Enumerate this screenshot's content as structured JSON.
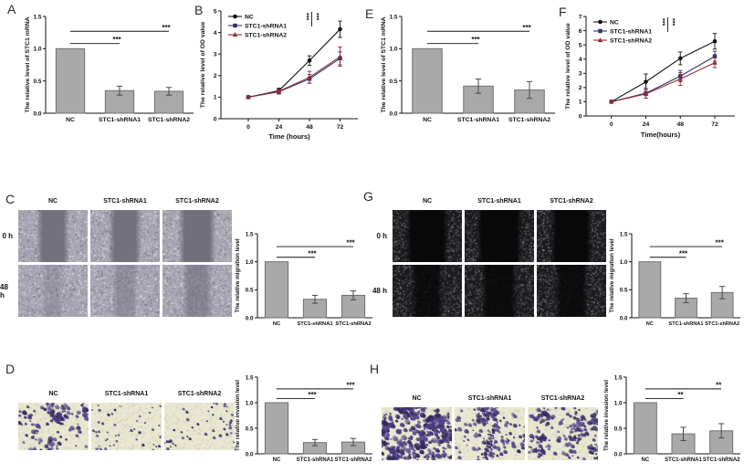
{
  "figure": {
    "panels": {
      "A": {
        "letter": "A"
      },
      "B": {
        "letter": "B"
      },
      "C": {
        "letter": "C"
      },
      "D": {
        "letter": "D"
      },
      "E": {
        "letter": "E"
      },
      "F": {
        "letter": "F"
      },
      "G": {
        "letter": "G"
      },
      "H": {
        "letter": "H"
      }
    }
  },
  "colors": {
    "axis": "#111111",
    "bar_fill": "#a9a9a9",
    "bar_stroke": "#6f6f6f",
    "error": "#4a4a4a",
    "nc": "#111111",
    "shrna1": "#33336e",
    "shrna2": "#8f2b33"
  },
  "chart_data": [
    {
      "id": "A",
      "type": "bar",
      "title": "",
      "ylabel": "The relative level of STC1 mRNA",
      "ylim": [
        0,
        1.5
      ],
      "yticks": [
        "0.0",
        "0.5",
        "1.0",
        "1.5"
      ],
      "categories": [
        "NC",
        "STC1-shRNA1",
        "STC1-shRNA2"
      ],
      "values": [
        1.0,
        0.35,
        0.34
      ],
      "errors": [
        0,
        0.07,
        0.06
      ],
      "sig": [
        {
          "a": 0,
          "b": 1,
          "y": 1.08,
          "label": "***"
        },
        {
          "a": 0,
          "b": 2,
          "y": 1.27,
          "label": "***"
        }
      ],
      "layout": {
        "ml": 26,
        "mt": 12,
        "mr": 8,
        "mb": 22,
        "ylx": 8,
        "yls": 6.8,
        "ts": 6.5,
        "cs": 6.8,
        "cly": 9,
        "bw": 0.58
      }
    },
    {
      "id": "B",
      "type": "line",
      "ylabel": "The relative level of OD value",
      "xlabel": "Time (hours)",
      "ylim": [
        0,
        5
      ],
      "yticks": [
        0,
        1,
        2,
        3,
        4,
        5
      ],
      "x": [
        0,
        24,
        48,
        72
      ],
      "series": [
        {
          "name": "NC",
          "color": "#111111",
          "marker": "circle",
          "values": [
            1.0,
            1.3,
            2.7,
            4.15
          ],
          "errors": [
            0.06,
            0.12,
            0.22,
            0.38
          ]
        },
        {
          "name": "STC1-shRNA1",
          "color": "#33336e",
          "marker": "square",
          "values": [
            1.0,
            1.25,
            1.85,
            2.8
          ],
          "errors": [
            0.06,
            0.1,
            0.2,
            0.3
          ]
        },
        {
          "name": "STC1-shRNA2",
          "color": "#8f2b33",
          "marker": "triangle",
          "values": [
            1.0,
            1.27,
            1.92,
            2.88
          ],
          "errors": [
            0.06,
            0.12,
            0.28,
            0.45
          ]
        }
      ],
      "sig": {
        "labels": [
          "***",
          "***"
        ]
      },
      "layout": {
        "ml": 26,
        "mt": 8,
        "mr": 10,
        "mb": 30,
        "ylx": 8,
        "yls": 6.8,
        "ts": 6.8,
        "padL": 0.2,
        "padR": 0.13,
        "xly": 16,
        "xls": 7.5,
        "fx": 0.61
      }
    },
    {
      "id": "E",
      "type": "bar",
      "ylabel": "The relative level of STC1 mRNA",
      "ylim": [
        0,
        1.5
      ],
      "yticks": [
        "0.0",
        "0.5",
        "1.0",
        "1.5"
      ],
      "categories": [
        "NC",
        "STC1-shRNA1",
        "STC1-shRNA2"
      ],
      "values": [
        1.0,
        0.42,
        0.36
      ],
      "errors": [
        0,
        0.11,
        0.13
      ],
      "sig": [
        {
          "a": 0,
          "b": 1,
          "y": 1.08,
          "label": "***"
        },
        {
          "a": 0,
          "b": 2,
          "y": 1.27,
          "label": "***"
        }
      ],
      "layout": {
        "ml": 26,
        "mt": 12,
        "mr": 6,
        "mb": 22,
        "ylx": 8,
        "yls": 6.8,
        "ts": 6.5,
        "cs": 6.8,
        "cly": 9,
        "bw": 0.58
      }
    },
    {
      "id": "F",
      "type": "line",
      "ylabel": "The relative level of OD value",
      "xlabel": "Time(hours)",
      "ylim": [
        0,
        7
      ],
      "yticks": [
        0,
        1,
        2,
        3,
        4,
        5,
        6,
        7
      ],
      "x": [
        0,
        24,
        48,
        72
      ],
      "series": [
        {
          "name": "NC",
          "color": "#111111",
          "marker": "circle",
          "values": [
            1.0,
            2.4,
            4.05,
            5.25
          ],
          "errors": [
            0.06,
            0.55,
            0.45,
            0.55
          ]
        },
        {
          "name": "STC1-shRNA1",
          "color": "#33336e",
          "marker": "square",
          "values": [
            1.0,
            1.6,
            2.8,
            4.2
          ],
          "errors": [
            0.06,
            0.35,
            0.4,
            0.35
          ]
        },
        {
          "name": "STC1-shRNA2",
          "color": "#8f2b33",
          "marker": "triangle",
          "values": [
            1.0,
            1.55,
            2.6,
            3.75
          ],
          "errors": [
            0.06,
            0.3,
            0.45,
            0.35
          ]
        }
      ],
      "sig": {
        "labels": [
          "***",
          "***"
        ]
      },
      "layout": {
        "ml": 26,
        "mt": 14,
        "mr": 10,
        "mb": 33,
        "ylx": 8,
        "yls": 6.8,
        "ts": 6.8,
        "padL": 0.17,
        "padR": 0.135,
        "xly": 17,
        "xls": 7.5,
        "fx": 0.5
      }
    },
    {
      "id": "C",
      "type": "bar",
      "ylabel": "The relative migration level",
      "ylim": [
        0,
        1.5
      ],
      "yticks": [
        "0.0",
        "0.5",
        "1.0",
        "1.5"
      ],
      "categories": [
        "NC",
        "STC1-shRNA1",
        "STC1-shRNA2"
      ],
      "values": [
        1.0,
        0.33,
        0.4
      ],
      "errors": [
        0,
        0.07,
        0.08
      ],
      "sig": [
        {
          "a": 0,
          "b": 1,
          "y": 1.08,
          "label": "***"
        },
        {
          "a": 0,
          "b": 2,
          "y": 1.27,
          "label": "***"
        }
      ],
      "layout": {
        "ml": 30,
        "mt": 14,
        "mr": 4,
        "mb": 12,
        "ylx": 10,
        "yls": 6.3,
        "ts": 6.3,
        "cs": 5.8,
        "cly": 8,
        "bw": 0.6
      }
    },
    {
      "id": "G",
      "type": "bar",
      "ylabel": "The relative migration level",
      "ylim": [
        0,
        1.5
      ],
      "yticks": [
        "0.0",
        "0.5",
        "1.0",
        "1.5"
      ],
      "categories": [
        "NC",
        "STC1-shRNA1",
        "STC1-shRNA2"
      ],
      "values": [
        1.0,
        0.35,
        0.45
      ],
      "errors": [
        0,
        0.08,
        0.11
      ],
      "sig": [
        {
          "a": 0,
          "b": 1,
          "y": 1.08,
          "label": "***"
        },
        {
          "a": 0,
          "b": 2,
          "y": 1.27,
          "label": "***"
        }
      ],
      "layout": {
        "ml": 30,
        "mt": 14,
        "mr": 4,
        "mb": 12,
        "ylx": 10,
        "yls": 6.3,
        "ts": 6.3,
        "cs": 5.6,
        "cly": 8,
        "bw": 0.6
      }
    },
    {
      "id": "D",
      "type": "bar",
      "ylabel": "The relative invasion level",
      "ylim": [
        0,
        1.5
      ],
      "yticks": [
        "0.0",
        "0.5",
        "1.0",
        "1.5"
      ],
      "categories": [
        "NC",
        "STC1-shRNA1",
        "STC1-shRNA2"
      ],
      "values": [
        1.0,
        0.22,
        0.23
      ],
      "errors": [
        0,
        0.06,
        0.07
      ],
      "sig": [
        {
          "a": 0,
          "b": 1,
          "y": 1.08,
          "label": "***"
        },
        {
          "a": 0,
          "b": 2,
          "y": 1.27,
          "label": "***"
        }
      ],
      "layout": {
        "ml": 30,
        "mt": 17,
        "mr": 4,
        "mb": 19,
        "ylx": 10,
        "yls": 6.3,
        "ts": 6.3,
        "cs": 6,
        "cly": 8,
        "bw": 0.6
      }
    },
    {
      "id": "H",
      "type": "bar",
      "ylabel": "The relative invasion level",
      "ylim": [
        0,
        1.5
      ],
      "yticks": [
        "0.0",
        "0.5",
        "1.0",
        "1.5"
      ],
      "categories": [
        "NC",
        "STC1-shRNA1",
        "STC1-shRNA2"
      ],
      "values": [
        1.0,
        0.39,
        0.45
      ],
      "errors": [
        0,
        0.13,
        0.14
      ],
      "sig": [
        {
          "a": 0,
          "b": 1,
          "y": 1.08,
          "label": "**"
        },
        {
          "a": 0,
          "b": 2,
          "y": 1.27,
          "label": "**"
        }
      ],
      "layout": {
        "ml": 30,
        "mt": 17,
        "mr": 4,
        "mb": 19,
        "ylx": 10,
        "yls": 6.3,
        "ts": 6.3,
        "cs": 6,
        "cly": 8,
        "bw": 0.6
      }
    }
  ],
  "microscopy": {
    "C": {
      "style": "scratch-light",
      "columns": [
        "NC",
        "STC1-shRNA1",
        "STC1-shRNA2"
      ],
      "rows": [
        "0 h",
        "48 h"
      ],
      "tiles": [
        [
          {
            "band_w": 0.3,
            "band_o": 0.92
          },
          {
            "band_w": 0.3,
            "band_o": 0.92
          },
          {
            "band_w": 0.36,
            "band_o": 0.95
          }
        ],
        [
          {
            "band_w": 0.16,
            "band_o": 0.3
          },
          {
            "band_w": 0.2,
            "band_o": 0.45
          },
          {
            "band_w": 0.26,
            "band_o": 0.6
          }
        ]
      ]
    },
    "G": {
      "style": "scratch-dark",
      "columns": [
        "NC",
        "STC1-shRNA1",
        "STC1-shRNA2"
      ],
      "rows": [
        "0 h",
        "48 h"
      ],
      "tiles": [
        [
          {
            "band_w": 0.46,
            "band_o": 0.95
          },
          {
            "band_w": 0.5,
            "band_o": 0.95
          },
          {
            "band_w": 0.44,
            "band_o": 0.95
          }
        ],
        [
          {
            "band_w": 0.3,
            "band_o": 0.85
          },
          {
            "band_w": 0.36,
            "band_o": 0.88
          },
          {
            "band_w": 0.32,
            "band_o": 0.85
          }
        ]
      ]
    },
    "D": {
      "style": "invasion",
      "columns": [
        "NC",
        "STC1-shRNA1",
        "STC1-shRNA2"
      ],
      "rows": [],
      "tiles": [
        [
          {
            "density": 120,
            "rmax": 2.6,
            "clusters": 10
          },
          {
            "density": 48,
            "rmax": 1.6,
            "clusters": 0
          },
          {
            "density": 52,
            "rmax": 1.7,
            "clusters": 2
          }
        ]
      ]
    },
    "H": {
      "style": "invasion",
      "columns": [
        "NC",
        "STC1-shRNA1",
        "STC1-shRNA2"
      ],
      "rows": [],
      "tiles": [
        [
          {
            "density": 400,
            "rmax": 3.0,
            "clusters": 16
          },
          {
            "density": 185,
            "rmax": 2.4,
            "clusters": 8
          },
          {
            "density": 195,
            "rmax": 2.5,
            "clusters": 8
          }
        ]
      ]
    }
  },
  "styles": {
    "scratch-light": {
      "base": "#a6a4b0",
      "band": "#6e6c77",
      "noise": [
        [
          "#cfcdd8",
          420,
          1.4,
          0.8
        ],
        [
          "#7e7c88",
          380,
          1.3,
          0.7
        ],
        [
          "#c3c1cc",
          260,
          1.0,
          0.8
        ]
      ]
    },
    "scratch-dark": {
      "base": "#1b1b1e",
      "band": "#070708",
      "noise": [
        [
          "#5e5e66",
          520,
          1.2,
          0.95
        ],
        [
          "#3a3a40",
          420,
          1.5,
          0.85
        ],
        [
          "#97979f",
          120,
          0.8,
          0.9
        ]
      ]
    },
    "invasion": {
      "base": "#e9e7d1",
      "dots": [
        "#46397c",
        "#5a4d8e",
        "#33295e"
      ],
      "noise": [
        [
          "#d6d4bb",
          240,
          1.6,
          0.7
        ],
        [
          "#bdbba0",
          130,
          1.1,
          0.55
        ]
      ]
    }
  }
}
